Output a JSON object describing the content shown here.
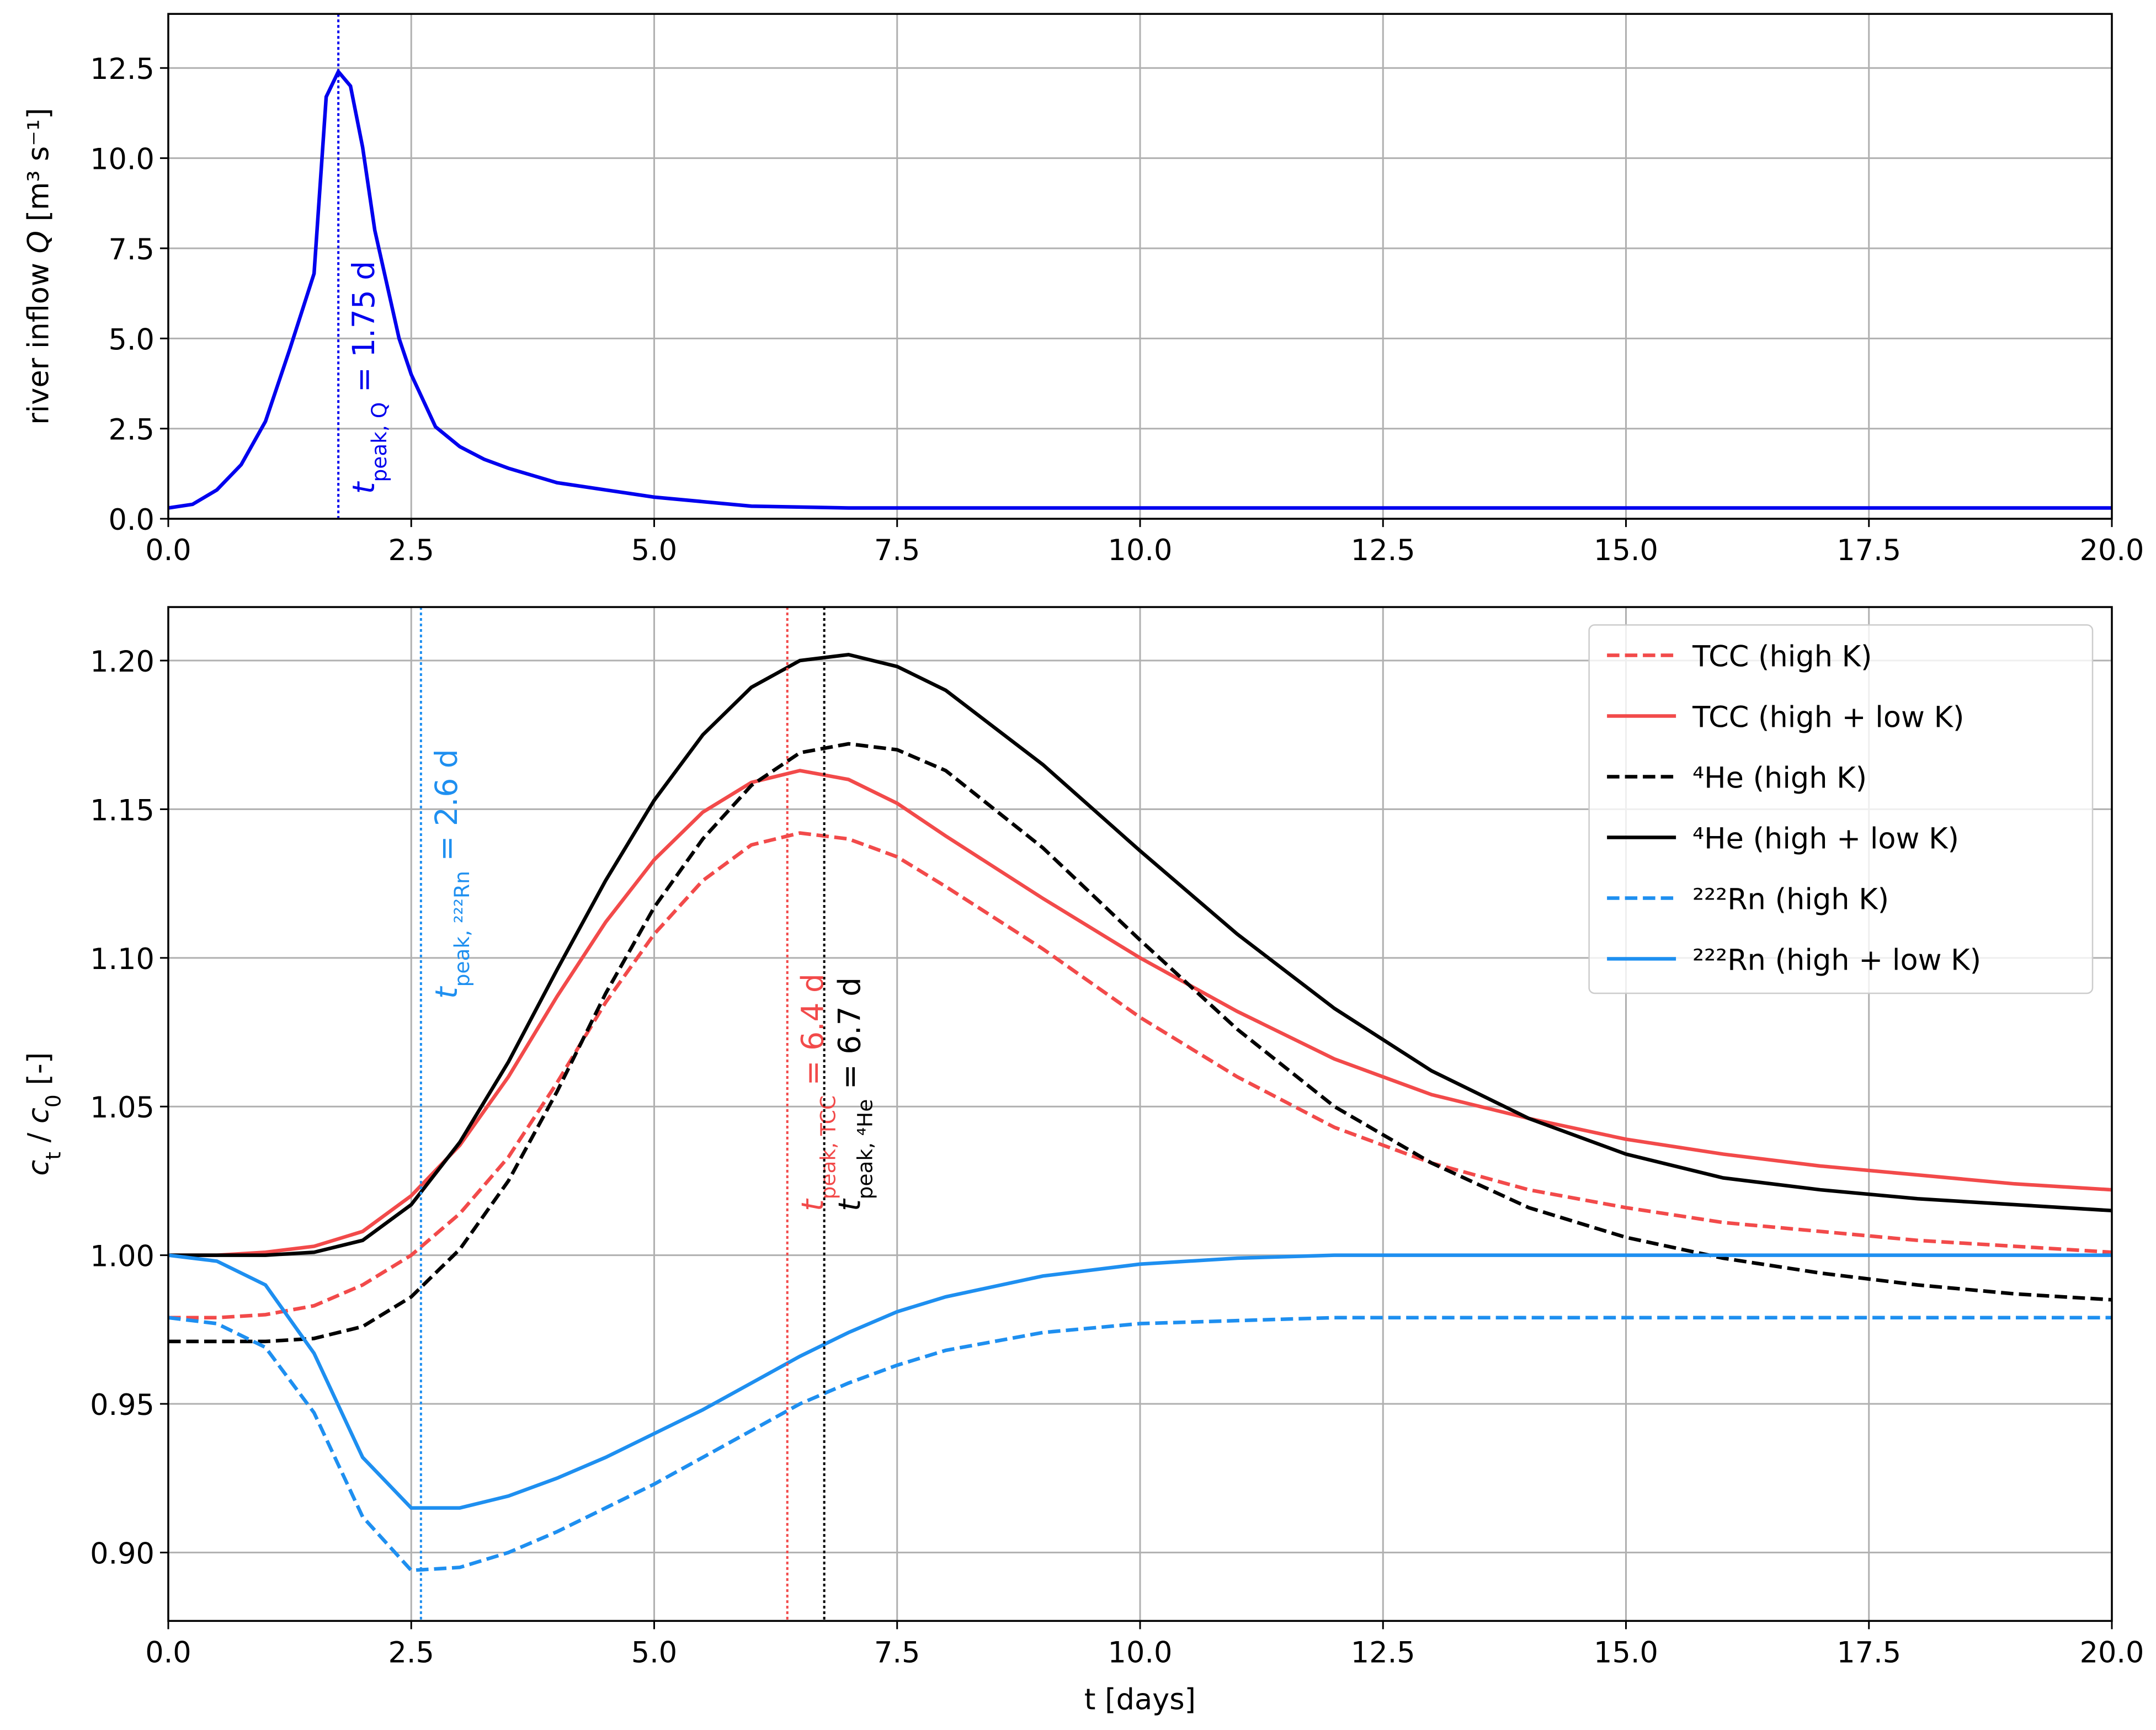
{
  "chart_data": [
    {
      "type": "line",
      "ylabel": [
        {
          "text": "river inflow "
        },
        {
          "text": "Q",
          "style": "italic"
        },
        {
          "text": " [m³ s⁻¹]"
        }
      ],
      "xlim": [
        0,
        20
      ],
      "ylim": [
        0,
        14
      ],
      "xticks": [
        {
          "value": 0,
          "label": "0.0"
        },
        2.5,
        {
          "value": 5,
          "label": "5.0"
        },
        7.5,
        {
          "value": 10,
          "label": "10.0"
        },
        12.5,
        {
          "value": 15,
          "label": "15.0"
        },
        17.5,
        {
          "value": 20,
          "label": "20.0"
        }
      ],
      "yticks": [
        {
          "value": 0,
          "label": "0.0"
        },
        2.5,
        {
          "value": 5,
          "label": "5.0"
        },
        7.5,
        {
          "value": 10,
          "label": "10.0"
        },
        12.5
      ],
      "grid": true,
      "x": [
        0,
        0.25,
        0.5,
        0.75,
        1,
        1.25,
        1.5,
        1.625,
        1.75,
        1.875,
        2,
        2.125,
        2.375,
        2.5,
        2.75,
        3,
        3.25,
        3.5,
        4,
        4.5,
        5,
        6,
        7,
        8,
        9,
        10,
        11,
        12,
        13,
        14,
        15,
        16,
        17,
        18,
        19,
        20
      ],
      "series": [
        {
          "color": "#0000ee",
          "dash": false,
          "values": [
            0.3,
            0.4,
            0.8,
            1.5,
            2.7,
            4.7,
            6.8,
            11.7,
            12.4,
            12.0,
            10.3,
            8.0,
            5.0,
            4.0,
            2.55,
            2.0,
            1.65,
            1.4,
            1.0,
            0.8,
            0.6,
            0.35,
            0.3,
            0.3,
            0.3,
            0.3,
            0.3,
            0.3,
            0.3,
            0.3,
            0.3,
            0.3,
            0.3,
            0.3,
            0.3,
            0.3
          ]
        }
      ],
      "annotations": [
        {
          "x": 1.75,
          "color": "#0000ee",
          "label": [
            {
              "text": "t",
              "style": "italic"
            },
            {
              "text": "peak, Q",
              "style": "sub"
            },
            {
              "text": " =  1.75 d"
            }
          ]
        }
      ]
    },
    {
      "type": "line",
      "xlabel": "t [days]",
      "ylabel": [
        {
          "text": "c",
          "style": "italic"
        },
        {
          "text": "t",
          "style": "sub"
        },
        {
          "text": " / "
        },
        {
          "text": "c",
          "style": "italic"
        },
        {
          "text": "0",
          "style": "sub"
        },
        {
          "text": " [-]"
        }
      ],
      "xlim": [
        0,
        20
      ],
      "ylim": [
        0.877,
        1.218
      ],
      "xticks": [
        {
          "value": 0,
          "label": "0.0"
        },
        2.5,
        {
          "value": 5,
          "label": "5.0"
        },
        7.5,
        {
          "value": 10,
          "label": "10.0"
        },
        12.5,
        {
          "value": 15,
          "label": "15.0"
        },
        17.5,
        {
          "value": 20,
          "label": "20.0"
        }
      ],
      "yticks": [
        {
          "value": 0.9,
          "label": "0.90"
        },
        0.95,
        {
          "value": 1,
          "label": "1.00"
        },
        1.05,
        {
          "value": 1.1,
          "label": "1.10"
        },
        1.15,
        {
          "value": 1.2,
          "label": "1.20"
        }
      ],
      "grid": true,
      "legend": "upper right",
      "x": [
        0,
        0.5,
        1,
        1.5,
        2,
        2.5,
        3,
        3.5,
        4,
        4.5,
        5,
        5.5,
        6,
        6.5,
        7,
        7.5,
        8,
        9,
        10,
        11,
        12,
        13,
        14,
        15,
        16,
        17,
        18,
        19,
        20
      ],
      "series": [
        {
          "name": "TCC (high K)",
          "color": "#f24a4a",
          "dash": true,
          "values": [
            0.979,
            0.979,
            0.98,
            0.983,
            0.99,
            1.0,
            1.014,
            1.033,
            1.058,
            1.085,
            1.108,
            1.126,
            1.138,
            1.142,
            1.14,
            1.134,
            1.124,
            1.103,
            1.08,
            1.06,
            1.043,
            1.031,
            1.022,
            1.016,
            1.011,
            1.008,
            1.005,
            1.003,
            1.001
          ]
        },
        {
          "name": "TCC (high + low K)",
          "color": "#f24a4a",
          "dash": false,
          "values": [
            1.0,
            1.0,
            1.001,
            1.003,
            1.008,
            1.02,
            1.037,
            1.06,
            1.087,
            1.112,
            1.133,
            1.149,
            1.159,
            1.163,
            1.16,
            1.152,
            1.141,
            1.12,
            1.1,
            1.082,
            1.066,
            1.054,
            1.046,
            1.039,
            1.034,
            1.03,
            1.027,
            1.024,
            1.022
          ]
        },
        {
          "name": "⁴He (high K)",
          "color": "#000000",
          "dash": true,
          "values": [
            0.971,
            0.971,
            0.971,
            0.972,
            0.976,
            0.986,
            1.002,
            1.025,
            1.055,
            1.088,
            1.117,
            1.14,
            1.158,
            1.169,
            1.172,
            1.17,
            1.163,
            1.137,
            1.106,
            1.076,
            1.05,
            1.031,
            1.016,
            1.006,
            0.999,
            0.994,
            0.99,
            0.987,
            0.985
          ]
        },
        {
          "name": "⁴He (high + low K)",
          "color": "#000000",
          "dash": false,
          "values": [
            1.0,
            1.0,
            1.0,
            1.001,
            1.005,
            1.017,
            1.038,
            1.065,
            1.096,
            1.126,
            1.153,
            1.175,
            1.191,
            1.2,
            1.202,
            1.198,
            1.19,
            1.165,
            1.136,
            1.108,
            1.083,
            1.062,
            1.046,
            1.034,
            1.026,
            1.022,
            1.019,
            1.017,
            1.015
          ]
        },
        {
          "name": "²²²Rn (high K)",
          "color": "#1e8ff0",
          "dash": true,
          "values": [
            0.979,
            0.977,
            0.969,
            0.947,
            0.912,
            0.894,
            0.895,
            0.9,
            0.907,
            0.915,
            0.923,
            0.932,
            0.941,
            0.95,
            0.957,
            0.963,
            0.968,
            0.974,
            0.977,
            0.978,
            0.979,
            0.979,
            0.979,
            0.979,
            0.979,
            0.979,
            0.979,
            0.979,
            0.979
          ]
        },
        {
          "name": "²²²Rn (high + low K)",
          "color": "#1e8ff0",
          "dash": false,
          "values": [
            1.0,
            0.998,
            0.99,
            0.967,
            0.932,
            0.915,
            0.915,
            0.919,
            0.925,
            0.932,
            0.94,
            0.948,
            0.957,
            0.966,
            0.974,
            0.981,
            0.986,
            0.993,
            0.997,
            0.999,
            1.0,
            1.0,
            1.0,
            1.0,
            1.0,
            1.0,
            1.0,
            1.0,
            1.0
          ]
        }
      ],
      "annotations": [
        {
          "x": 2.6,
          "color": "#1e8ff0",
          "label": [
            {
              "text": "t",
              "style": "italic"
            },
            {
              "text": "peak, ²²²Rn",
              "style": "sub"
            },
            {
              "text": " =  2.6 d"
            }
          ]
        },
        {
          "x": 6.37,
          "color": "#f24a4a",
          "label": [
            {
              "text": "t",
              "style": "italic"
            },
            {
              "text": "peak, TCC",
              "style": "sub"
            },
            {
              "text": " =  6.4 d"
            }
          ]
        },
        {
          "x": 6.75,
          "color": "#000000",
          "label": [
            {
              "text": "t",
              "style": "italic"
            },
            {
              "text": "peak, ⁴He",
              "style": "sub"
            },
            {
              "text": " =  6.7 d"
            }
          ]
        }
      ]
    }
  ]
}
